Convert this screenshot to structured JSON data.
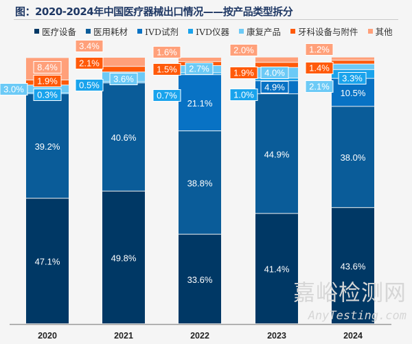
{
  "chart_data": {
    "type": "bar",
    "stacked": true,
    "title": "图：2020-2024年中国医疗器械出口情况——按产品类型拆分",
    "categories": [
      "2020",
      "2021",
      "2022",
      "2023",
      "2024"
    ],
    "ylim": [
      0,
      100
    ],
    "unit": "%",
    "grid": false,
    "legend_position": "top",
    "series": [
      {
        "name": "医疗设备",
        "color": "#003865",
        "values": [
          47.1,
          49.8,
          33.6,
          41.4,
          43.6
        ]
      },
      {
        "name": "医用耗材",
        "color": "#0a5c99",
        "values": [
          39.2,
          40.6,
          38.8,
          44.9,
          38.0
        ]
      },
      {
        "name": "IVD试剂",
        "color": "#0872c4",
        "values": [
          null,
          null,
          21.1,
          4.9,
          10.5
        ]
      },
      {
        "name": "IVD仪器",
        "color": "#19a3ec",
        "values": [
          0.3,
          0.5,
          0.7,
          1.0,
          3.3
        ]
      },
      {
        "name": "康复产品",
        "color": "#6ccaf6",
        "values": [
          3.0,
          3.6,
          2.7,
          4.0,
          2.1
        ]
      },
      {
        "name": "牙科设备与附件",
        "color": "#ff5a0a",
        "values": [
          1.9,
          2.1,
          1.5,
          1.9,
          1.4
        ]
      },
      {
        "name": "其他",
        "color": "#ffa07a",
        "values": [
          8.4,
          3.4,
          1.6,
          2.0,
          1.2
        ]
      }
    ]
  },
  "watermark": {
    "cn": "嘉峪检测网",
    "en": "AnyTesting.com"
  }
}
